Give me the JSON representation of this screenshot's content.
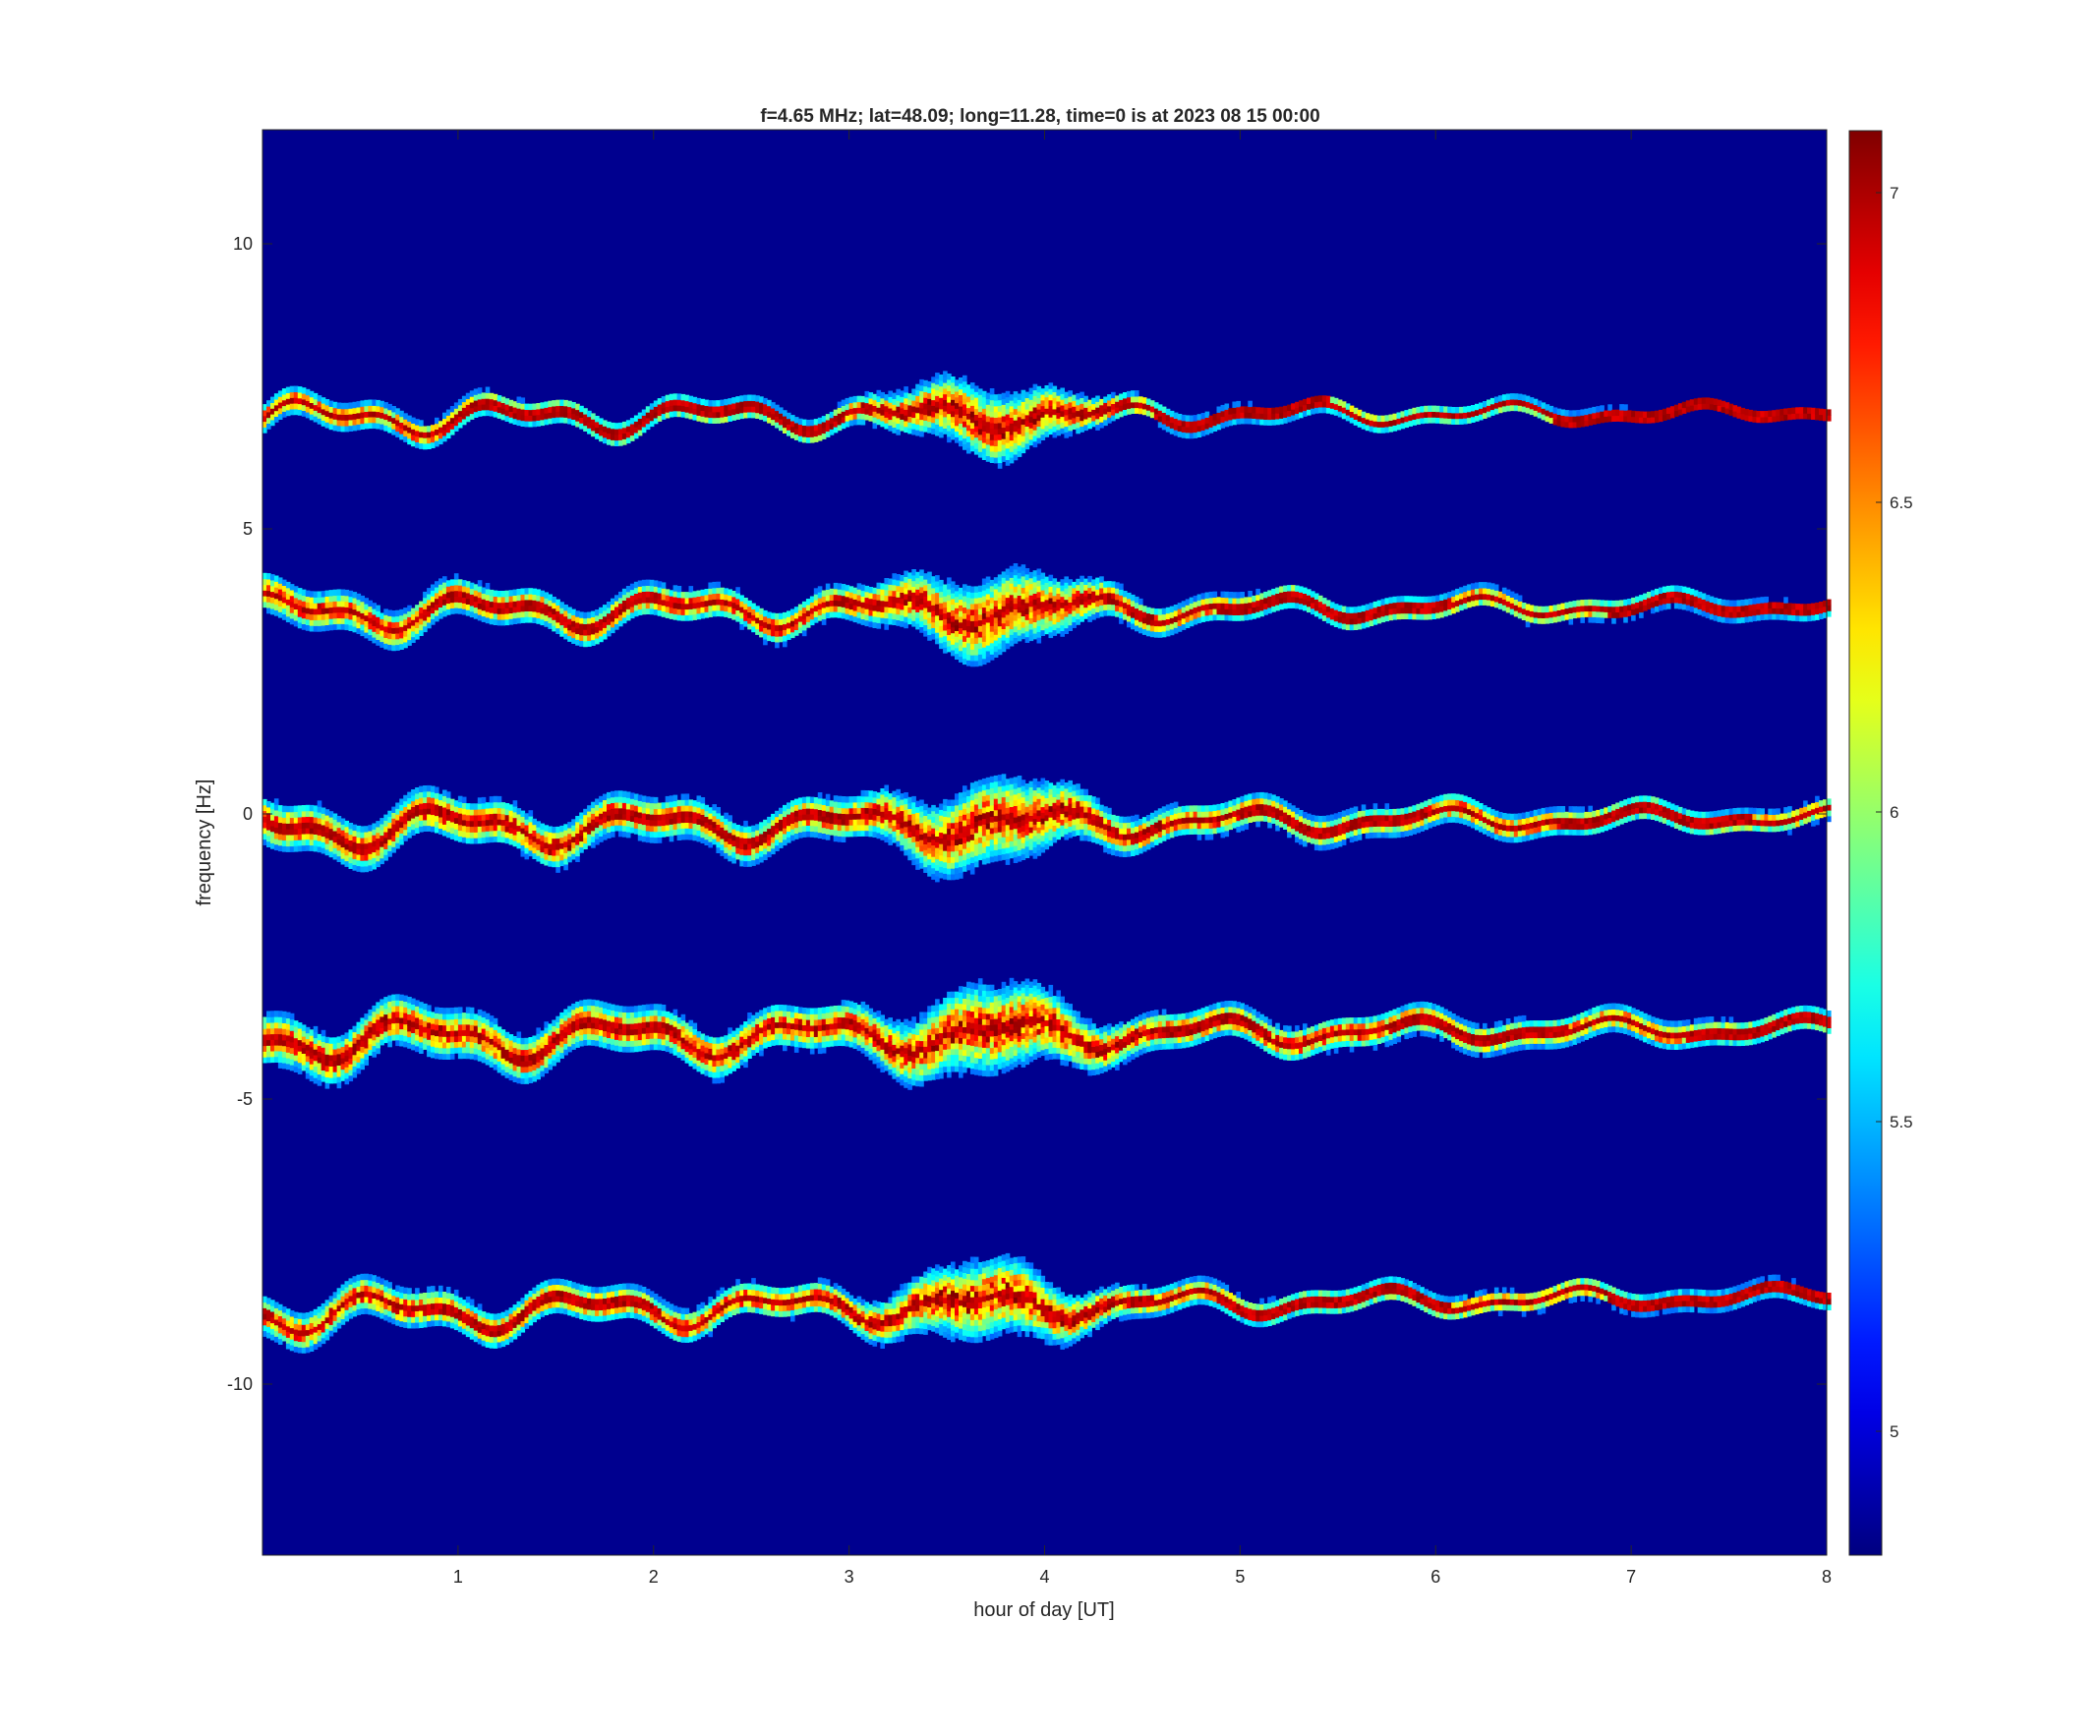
{
  "chart_data": {
    "type": "heatmap",
    "title": "f=4.65 MHz;  lat=48.09; long=11.28, time=0 is at 2023 08 15 00:00",
    "xlabel": "hour of day [UT]",
    "ylabel": "frequency [Hz]",
    "xlim": [
      0,
      8
    ],
    "ylim": [
      -13,
      12
    ],
    "x_ticks": [
      1,
      2,
      3,
      4,
      5,
      6,
      7,
      8
    ],
    "x_tick_labels": [
      "1",
      "2",
      "3",
      "4",
      "5",
      "6",
      "7",
      "8"
    ],
    "y_ticks": [
      10,
      5,
      0,
      -5,
      -10
    ],
    "y_tick_labels": [
      "10",
      "5",
      "0",
      "-5",
      "-10"
    ],
    "colorscale": "jet",
    "background_color": "#00008F",
    "colorbar": {
      "limits": [
        4.8,
        7.1
      ],
      "ticks": [
        7,
        6.5,
        6,
        5.5,
        5
      ],
      "tick_labels": [
        "7",
        "6.5",
        "6",
        "5.5",
        "5"
      ]
    },
    "grid": false,
    "series": [
      {
        "center": 7,
        "start": 6.9,
        "end": 7.0,
        "wiggle": 0.22,
        "width": 0.32
      },
      {
        "center": 3.7,
        "start": 3.5,
        "end": 3.6,
        "wiggle": 0.25,
        "width": 0.45
      },
      {
        "center": 0,
        "start": -0.3,
        "end": -0.1,
        "wiggle": 0.28,
        "width": 0.55
      },
      {
        "center": -3.8,
        "start": -4.0,
        "end": -3.8,
        "wiggle": 0.3,
        "width": 0.6
      },
      {
        "center": -8.5,
        "start": -8.8,
        "end": -8.5,
        "wiggle": 0.25,
        "width": 0.45
      }
    ]
  }
}
